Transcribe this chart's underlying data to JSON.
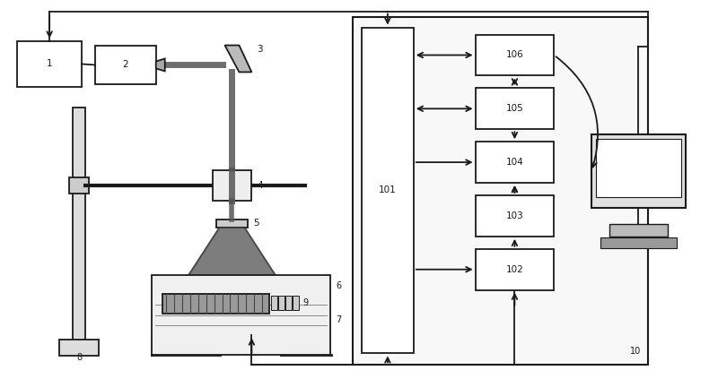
{
  "figsize": [
    8.0,
    4.23
  ],
  "dpi": 100,
  "lc": "#1a1a1a",
  "lw": 1.3,
  "fs": 7.5,
  "bg": "#ffffff"
}
